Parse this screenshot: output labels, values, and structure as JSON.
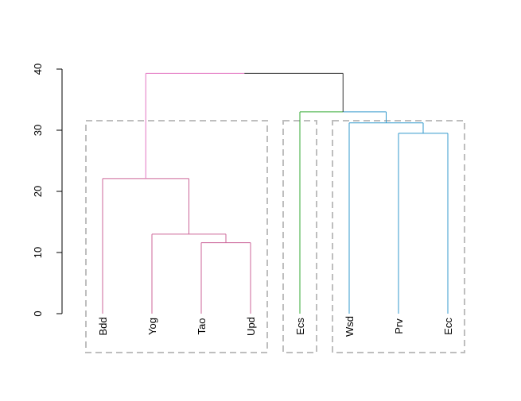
{
  "chart_data": {
    "type": "dendrogram",
    "title": "",
    "xlabel": "",
    "ylabel": "",
    "ylim": [
      0,
      40
    ],
    "yticks": [
      0,
      10,
      20,
      30,
      40
    ],
    "grid": false,
    "leaves": [
      "Bdd",
      "Yog",
      "Tao",
      "Upd",
      "Ecs",
      "Wsd",
      "Prv",
      "Ecc"
    ],
    "merges": [
      {
        "id": "m1",
        "left": "Tao",
        "right": "Upd",
        "height": 11.6,
        "color": "#CC6699"
      },
      {
        "id": "m2",
        "left": "Yog",
        "right": "m1",
        "height": 13.0,
        "color": "#CC6699"
      },
      {
        "id": "m3",
        "left": "Bdd",
        "right": "m2",
        "height": 22.1,
        "color": "#CC6699"
      },
      {
        "id": "m4",
        "left": "Prv",
        "right": "Ecc",
        "height": 29.5,
        "color": "#3399CC"
      },
      {
        "id": "m5",
        "left": "Wsd",
        "right": "m4",
        "height": 31.2,
        "color": "#3399CC"
      },
      {
        "id": "m6",
        "left": "Ecs",
        "right": "m5",
        "height": 33.0,
        "color": "#33AA33",
        "right_color": "#3399CC"
      },
      {
        "id": "m7",
        "left": "m3",
        "right": "m6",
        "height": 39.3,
        "color": "#E377C2",
        "right_color": "#333333"
      }
    ],
    "leaf_colors": {
      "Bdd": "#CC6699",
      "Yog": "#CC6699",
      "Tao": "#CC6699",
      "Upd": "#CC6699",
      "Ecs": "#33AA33",
      "Wsd": "#3399CC",
      "Prv": "#3399CC",
      "Ecc": "#3399CC"
    },
    "cluster_boxes": [
      {
        "leaves": [
          "Bdd",
          "Yog",
          "Tao",
          "Upd"
        ]
      },
      {
        "leaves": [
          "Ecs"
        ]
      },
      {
        "leaves": [
          "Wsd",
          "Prv",
          "Ecc"
        ]
      }
    ],
    "box_color": "#BEBEBE"
  }
}
